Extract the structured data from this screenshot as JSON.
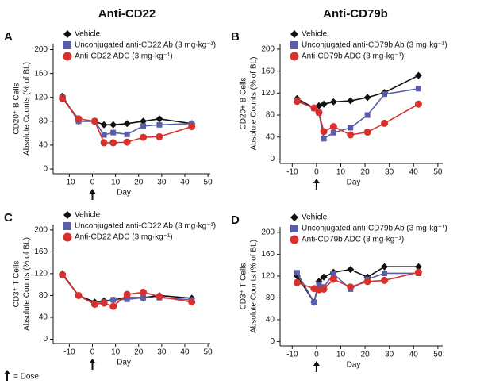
{
  "column_titles": [
    "Anti-CD22",
    "Anti-CD79b"
  ],
  "footnote": "= Dose",
  "chart_data": [
    {
      "type": "line",
      "panel_label": "A",
      "ylabel": [
        "CD20⁺ B Cells",
        "Absolute Counts (% of BL)"
      ],
      "xlabel": "Day",
      "x": [
        -13,
        -6,
        1,
        5,
        9,
        15,
        22,
        29,
        43
      ],
      "xlim": [
        -17,
        51
      ],
      "xticks": [
        -10,
        0,
        10,
        20,
        30,
        40,
        50
      ],
      "ylim": [
        -8,
        210
      ],
      "yticks": [
        0,
        40,
        80,
        120,
        160,
        200
      ],
      "legend": "top",
      "series": [
        {
          "name": "Vehicle",
          "color": "#111111",
          "marker": "diamond",
          "values": [
            122,
            80,
            80,
            74,
            74,
            76,
            80,
            84,
            76
          ]
        },
        {
          "name": "Unconjugated anti-CD22 Ab (3 mg·kg⁻¹)",
          "color": "#5a5eaa",
          "marker": "square",
          "values": [
            120,
            80,
            80,
            57,
            61,
            58,
            72,
            74,
            76
          ]
        },
        {
          "name": "Anti-CD22 ADC (3 mg·kg⁻¹)",
          "color": "#d7312d",
          "marker": "circle",
          "values": [
            118,
            84,
            80,
            44,
            44,
            45,
            53,
            54,
            71
          ]
        }
      ]
    },
    {
      "type": "line",
      "panel_label": "B",
      "ylabel": [
        "CD20+ B Cells",
        "Absolute Counts (% of BL)"
      ],
      "xlabel": "Day",
      "x": [
        -8,
        -1,
        1,
        3,
        7,
        14,
        21,
        28,
        42
      ],
      "xlim": [
        -15,
        52
      ],
      "xticks": [
        -10,
        0,
        10,
        20,
        30,
        40,
        50
      ],
      "ylim": [
        -8,
        210
      ],
      "yticks": [
        0,
        40,
        80,
        120,
        160,
        200
      ],
      "legend": "top",
      "series": [
        {
          "name": "Vehicle",
          "color": "#111111",
          "marker": "diamond",
          "values": [
            110,
            93,
            97,
            100,
            104,
            106,
            112,
            121,
            152
          ]
        },
        {
          "name": "Unconjugated anti-CD79b Ab (3 mg·kg⁻¹)",
          "color": "#5a5eaa",
          "marker": "square",
          "values": [
            107,
            92,
            84,
            37,
            48,
            57,
            80,
            118,
            128
          ]
        },
        {
          "name": "Anti-CD79b ADC (3 mg·kg⁻¹)",
          "color": "#d7312d",
          "marker": "circle",
          "values": [
            105,
            93,
            85,
            50,
            59,
            44,
            49,
            65,
            100
          ]
        }
      ]
    },
    {
      "type": "line",
      "panel_label": "C",
      "ylabel": [
        "CD3⁺ T Cells",
        "Absolute Counts (% of BL)"
      ],
      "xlabel": "Day",
      "x": [
        -13,
        -6,
        1,
        5,
        9,
        15,
        22,
        29,
        43
      ],
      "xlim": [
        -17,
        51
      ],
      "xticks": [
        -10,
        0,
        10,
        20,
        30,
        40,
        50
      ],
      "ylim": [
        -8,
        210
      ],
      "yticks": [
        0,
        40,
        80,
        120,
        160,
        200
      ],
      "legend": "top",
      "series": [
        {
          "name": "Vehicle",
          "color": "#111111",
          "marker": "diamond",
          "values": [
            120,
            80,
            68,
            70,
            72,
            76,
            76,
            80,
            75
          ]
        },
        {
          "name": "Unconjugated anti-CD22 Ab (3 mg·kg⁻¹)",
          "color": "#5a5eaa",
          "marker": "square",
          "values": [
            118,
            80,
            64,
            68,
            72,
            73,
            76,
            76,
            72
          ]
        },
        {
          "name": "Anti-CD22 ADC (3 mg·kg⁻¹)",
          "color": "#d7312d",
          "marker": "circle",
          "values": [
            118,
            80,
            64,
            66,
            60,
            82,
            86,
            78,
            68
          ]
        }
      ]
    },
    {
      "type": "line",
      "panel_label": "D",
      "ylabel": [
        "CD3⁺ T Cells",
        "Absolute Counts (% of BL)"
      ],
      "xlabel": "Day",
      "x": [
        -8,
        -1,
        1,
        3,
        7,
        14,
        21,
        28,
        42
      ],
      "xlim": [
        -15,
        52
      ],
      "xticks": [
        -10,
        0,
        10,
        20,
        30,
        40,
        50
      ],
      "ylim": [
        -8,
        210
      ],
      "yticks": [
        0,
        40,
        80,
        120,
        160,
        200
      ],
      "legend": "top",
      "series": [
        {
          "name": "Vehicle",
          "color": "#111111",
          "marker": "diamond",
          "values": [
            120,
            72,
            110,
            118,
            127,
            132,
            118,
            137,
            137
          ]
        },
        {
          "name": "Unconjugated anti-CD79b Ab (3 mg·kg⁻¹)",
          "color": "#5a5eaa",
          "marker": "square",
          "values": [
            126,
            72,
            105,
            100,
            124,
            96,
            114,
            125,
            125
          ]
        },
        {
          "name": "Anti-CD79b ADC (3 mg·kg⁻¹)",
          "color": "#d7312d",
          "marker": "circle",
          "values": [
            108,
            97,
            95,
            96,
            114,
            100,
            110,
            112,
            127
          ]
        }
      ]
    }
  ]
}
